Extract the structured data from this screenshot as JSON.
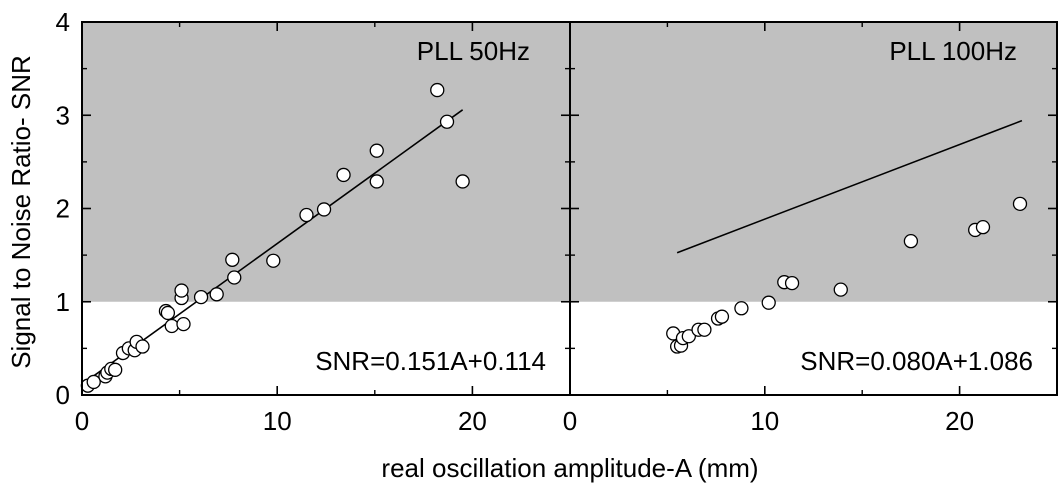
{
  "chart_data": {
    "type": "scatter",
    "ylabel": "Signal to Noise Ratio- SNR",
    "xlabel": "real oscillation amplitude-A (mm)",
    "shared_y": {
      "ylim": [
        0,
        4
      ],
      "yticks": [
        0,
        1,
        2,
        3,
        4
      ],
      "ytick_labels": [
        "0",
        "1",
        "2",
        "3",
        "4"
      ]
    },
    "shaded_region": {
      "y_from": 1,
      "y_to": 4,
      "color": "#c0c0c0"
    },
    "panels": [
      {
        "label": "PLL 50Hz",
        "equation": "SNR=0.151A+0.114",
        "xlim": [
          0,
          25
        ],
        "xticks": [
          0,
          10,
          20
        ],
        "xtick_labels": [
          "0",
          "10",
          "20"
        ],
        "fit": {
          "slope": 0.151,
          "intercept": 0.114,
          "x_range": [
            0.5,
            19.5
          ]
        },
        "points": [
          [
            0.3,
            0.1
          ],
          [
            0.6,
            0.14
          ],
          [
            1.2,
            0.2
          ],
          [
            1.3,
            0.24
          ],
          [
            1.5,
            0.28
          ],
          [
            1.7,
            0.27
          ],
          [
            2.1,
            0.45
          ],
          [
            2.4,
            0.5
          ],
          [
            2.7,
            0.48
          ],
          [
            2.8,
            0.57
          ],
          [
            3.1,
            0.52
          ],
          [
            4.3,
            0.9
          ],
          [
            4.4,
            0.88
          ],
          [
            4.6,
            0.74
          ],
          [
            5.1,
            1.04
          ],
          [
            5.1,
            1.12
          ],
          [
            5.2,
            0.76
          ],
          [
            6.1,
            1.05
          ],
          [
            6.9,
            1.08
          ],
          [
            7.7,
            1.45
          ],
          [
            7.8,
            1.26
          ],
          [
            9.8,
            1.44
          ],
          [
            11.5,
            1.93
          ],
          [
            12.4,
            1.99
          ],
          [
            13.4,
            2.36
          ],
          [
            15.1,
            2.62
          ],
          [
            15.1,
            2.29
          ],
          [
            18.2,
            3.27
          ],
          [
            18.7,
            2.93
          ],
          [
            19.5,
            2.29
          ]
        ]
      },
      {
        "label": "PLL 100Hz",
        "equation": "SNR=0.080A+1.086",
        "xlim": [
          0,
          25
        ],
        "xticks": [
          0,
          10,
          20
        ],
        "xtick_labels": [
          "0",
          "10",
          "20"
        ],
        "fit": {
          "slope": 0.08,
          "intercept": 1.086,
          "x_range": [
            5.5,
            23.2
          ]
        },
        "points": [
          [
            5.3,
            0.66
          ],
          [
            5.5,
            0.52
          ],
          [
            5.7,
            0.53
          ],
          [
            5.8,
            0.61
          ],
          [
            6.1,
            0.63
          ],
          [
            6.6,
            0.7
          ],
          [
            6.9,
            0.7
          ],
          [
            7.6,
            0.82
          ],
          [
            7.8,
            0.84
          ],
          [
            8.8,
            0.93
          ],
          [
            10.2,
            0.99
          ],
          [
            11.0,
            1.21
          ],
          [
            11.4,
            1.2
          ],
          [
            13.9,
            1.13
          ],
          [
            17.5,
            1.65
          ],
          [
            20.8,
            1.77
          ],
          [
            21.2,
            1.8
          ],
          [
            23.1,
            2.05
          ]
        ]
      }
    ]
  }
}
